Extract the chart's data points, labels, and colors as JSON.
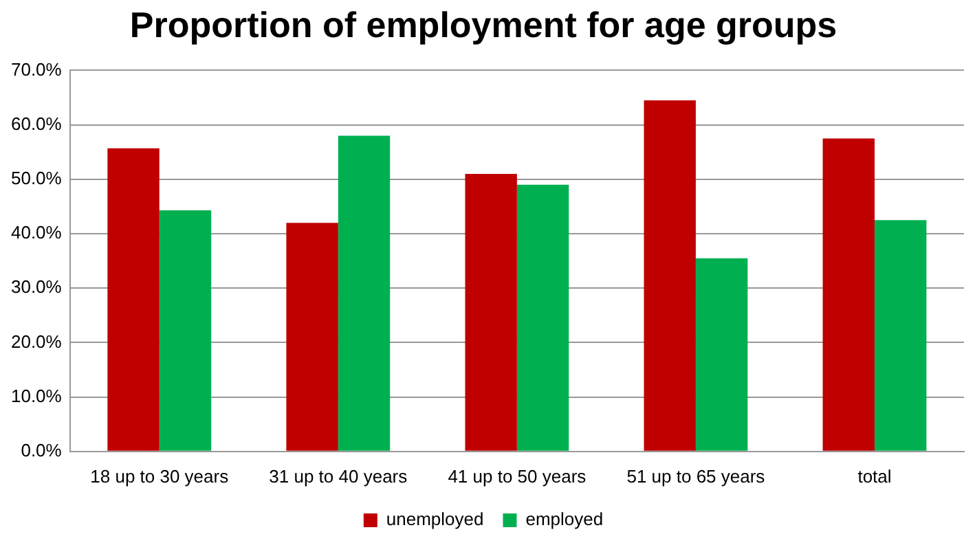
{
  "chart_data": {
    "type": "bar",
    "title": "Proportion of employment for age groups",
    "categories": [
      "18 up to 30 years",
      "31 up to 40 years",
      "41 up to 50 years",
      "51 up to 65 years",
      "total"
    ],
    "series": [
      {
        "name": "unemployed",
        "color": "#c00000",
        "values": [
          55.7,
          42.0,
          51.0,
          64.5,
          57.5
        ]
      },
      {
        "name": "employed",
        "color": "#00b050",
        "values": [
          44.3,
          58.0,
          49.0,
          35.5,
          42.5
        ]
      }
    ],
    "ylim": [
      0,
      70
    ],
    "yticks": [
      {
        "value": 0,
        "label": "0.0%"
      },
      {
        "value": 10,
        "label": "10.0%"
      },
      {
        "value": 20,
        "label": "20.0%"
      },
      {
        "value": 30,
        "label": "30.0%"
      },
      {
        "value": 40,
        "label": "40.0%"
      },
      {
        "value": 50,
        "label": "50.0%"
      },
      {
        "value": 60,
        "label": "60.0%"
      },
      {
        "value": 70,
        "label": "70.0%"
      }
    ],
    "grid": "y",
    "legend": "bottom"
  }
}
